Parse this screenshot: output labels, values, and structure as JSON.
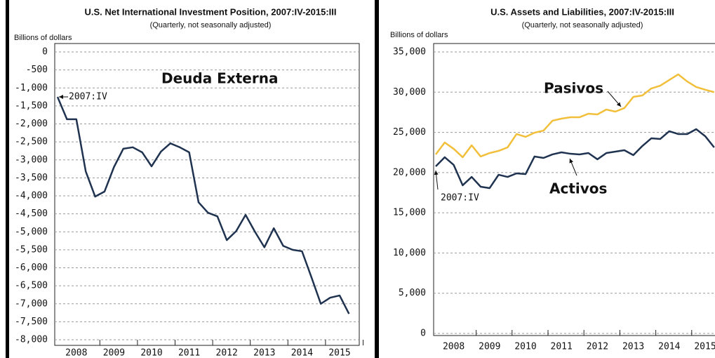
{
  "chart_data": [
    {
      "type": "line",
      "title": "U.S. Net International Investment Position, 2007:IV-2015:III",
      "subtitle": "(Quarterly,  not seasonally adjusted)",
      "y_label": "Billions  of dollars",
      "categories": [
        null,
        null,
        null,
        null,
        null,
        null,
        null,
        null,
        null,
        null,
        null,
        null,
        null,
        null,
        null,
        null,
        null,
        null,
        null,
        null,
        null,
        null,
        null,
        null,
        null,
        null,
        null,
        null,
        null,
        null,
        null,
        null
      ],
      "year_labels": [
        "2008",
        "2009",
        "2010",
        "2011",
        "2012",
        "2013",
        "2014",
        "2015"
      ],
      "ylim": [
        -8000,
        0
      ],
      "yticks": [
        0,
        -500,
        {
          "value": -1000,
          "label": "-1,000"
        },
        {
          "value": -1500,
          "label": "-1,500"
        },
        {
          "value": -2000,
          "label": "-2,000"
        },
        {
          "value": -2500,
          "label": "-2,500"
        },
        {
          "value": -3000,
          "label": "-3,000"
        },
        {
          "value": -3500,
          "label": "-3,500"
        },
        {
          "value": -4000,
          "label": "-4,000"
        },
        {
          "value": -4500,
          "label": "-4,500"
        },
        {
          "value": -5000,
          "label": "-5,000"
        },
        {
          "value": -5500,
          "label": "-5,500"
        },
        {
          "value": -6000,
          "label": "-6,000"
        },
        {
          "value": -6500,
          "label": "-6,500"
        },
        {
          "value": -7000,
          "label": "-7,000"
        },
        {
          "value": -7500,
          "label": "-7,500"
        },
        {
          "value": -8000,
          "label": "-8,000"
        }
      ],
      "grid": true,
      "series": [
        {
          "name": "Deuda Externa",
          "color": "#1f3350",
          "values": [
            -1250,
            -1870,
            -1870,
            -3320,
            -4020,
            -3880,
            -3200,
            -2690,
            -2650,
            -2790,
            -3180,
            -2770,
            -2540,
            -2650,
            -2790,
            -4180,
            -4470,
            -4570,
            -5230,
            -4980,
            -4530,
            -5000,
            -5430,
            -4900,
            -5390,
            -5500,
            -5540,
            -6260,
            -7000,
            -6830,
            -6770,
            -7280
          ]
        }
      ],
      "annotations": [
        "2007:IV"
      ]
    },
    {
      "type": "line",
      "title": "U.S. Assets and Liabilities, 2007:IV-2015:III",
      "subtitle": "(Quarterly,  not seasonally adjusted)",
      "y_label": "Billions  of dollars",
      "categories": [
        null,
        null,
        null,
        null,
        null,
        null,
        null,
        null,
        null,
        null,
        null,
        null,
        null,
        null,
        null,
        null,
        null,
        null,
        null,
        null,
        null,
        null,
        null,
        null,
        null,
        null,
        null,
        null,
        null,
        null,
        null,
        null
      ],
      "year_labels": [
        "2008",
        "2009",
        "2010",
        "2011",
        "2012",
        "2013",
        "2014",
        "2015"
      ],
      "ylim": [
        0,
        35000
      ],
      "yticks": [
        0,
        {
          "value": 5000,
          "label": "5,000"
        },
        {
          "value": 10000,
          "label": "10,000"
        },
        {
          "value": 15000,
          "label": "15,000"
        },
        {
          "value": 20000,
          "label": "20,000"
        },
        {
          "value": 25000,
          "label": "25,000"
        },
        {
          "value": 30000,
          "label": "30,000"
        },
        {
          "value": 35000,
          "label": "35,000"
        }
      ],
      "grid": true,
      "series": [
        {
          "name": "Pasivos",
          "color": "#f2bf3a",
          "values": [
            22260,
            23740,
            22950,
            21910,
            23390,
            22000,
            22430,
            22700,
            23130,
            24790,
            24440,
            24960,
            25220,
            26450,
            26710,
            26880,
            26880,
            27320,
            27230,
            27840,
            27580,
            28020,
            29410,
            29590,
            30460,
            30810,
            31510,
            32210,
            31330,
            30640,
            30300,
            30000
          ]
        },
        {
          "name": "Activos",
          "color": "#1f3350",
          "values": [
            20770,
            21910,
            20950,
            18420,
            19460,
            18240,
            18070,
            19730,
            19460,
            19900,
            19810,
            22000,
            21820,
            22260,
            22520,
            22340,
            22260,
            22430,
            21650,
            22430,
            22610,
            22780,
            22170,
            23300,
            24260,
            24180,
            25140,
            24790,
            24790,
            25400,
            24530,
            23130
          ]
        }
      ],
      "annotations": [
        "2007:IV"
      ]
    }
  ]
}
